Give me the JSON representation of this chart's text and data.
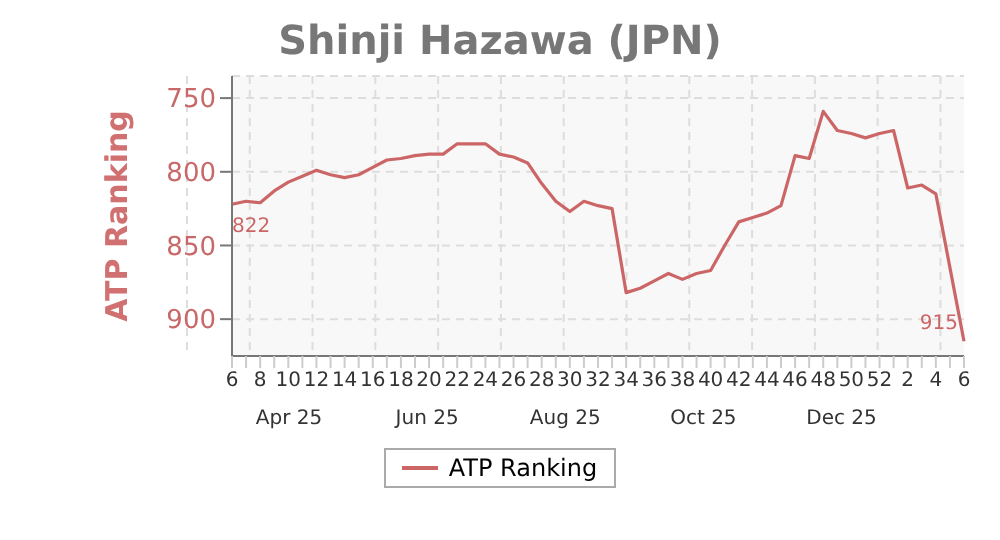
{
  "chart_data": {
    "type": "line",
    "title": "Shinji Hazawa (JPN)",
    "ylabel": "ATP Ranking",
    "categories": [
      "6",
      null,
      "8",
      null,
      "10",
      null,
      "12",
      null,
      "14",
      null,
      "16",
      null,
      "18",
      null,
      "20",
      null,
      "22",
      null,
      "24",
      null,
      "26",
      null,
      "28",
      null,
      "30",
      null,
      "32",
      null,
      "34",
      null,
      "36",
      null,
      "38",
      null,
      "40",
      null,
      "42",
      null,
      "44",
      null,
      "46",
      null,
      "48",
      null,
      "50",
      null,
      "52",
      null,
      "2",
      null,
      "4",
      null,
      "6"
    ],
    "series": [
      {
        "name": "ATP Ranking",
        "color": "#cc6666",
        "values": [
          822,
          820,
          821,
          813,
          807,
          803,
          799,
          802,
          804,
          802,
          797,
          792,
          791,
          789,
          788,
          788,
          781,
          781,
          781,
          788,
          790,
          794,
          808,
          820,
          827,
          820,
          823,
          825,
          882,
          879,
          874,
          869,
          873,
          869,
          867,
          850,
          834,
          831,
          828,
          823,
          789,
          791,
          759,
          772,
          774,
          777,
          774,
          772,
          811,
          809,
          815,
          865,
          915
        ],
        "value_labels": [
          "822",
          null,
          null,
          null,
          null,
          null,
          null,
          null,
          null,
          null,
          null,
          null,
          null,
          null,
          null,
          null,
          null,
          null,
          null,
          null,
          null,
          null,
          null,
          null,
          null,
          null,
          null,
          null,
          null,
          null,
          null,
          null,
          null,
          null,
          null,
          null,
          null,
          null,
          null,
          null,
          null,
          null,
          null,
          null,
          null,
          null,
          null,
          null,
          null,
          null,
          null,
          null,
          "915"
        ]
      }
    ],
    "annotations": [
      "Apr 25",
      "Jun 25",
      "Aug 25",
      "Oct 25",
      "Dec 25"
    ],
    "ylim": [
      925,
      735
    ],
    "yticks": [
      750,
      800,
      850,
      900
    ],
    "grid": true,
    "legend": "bottom",
    "marker": "none",
    "line_style": "solid"
  }
}
